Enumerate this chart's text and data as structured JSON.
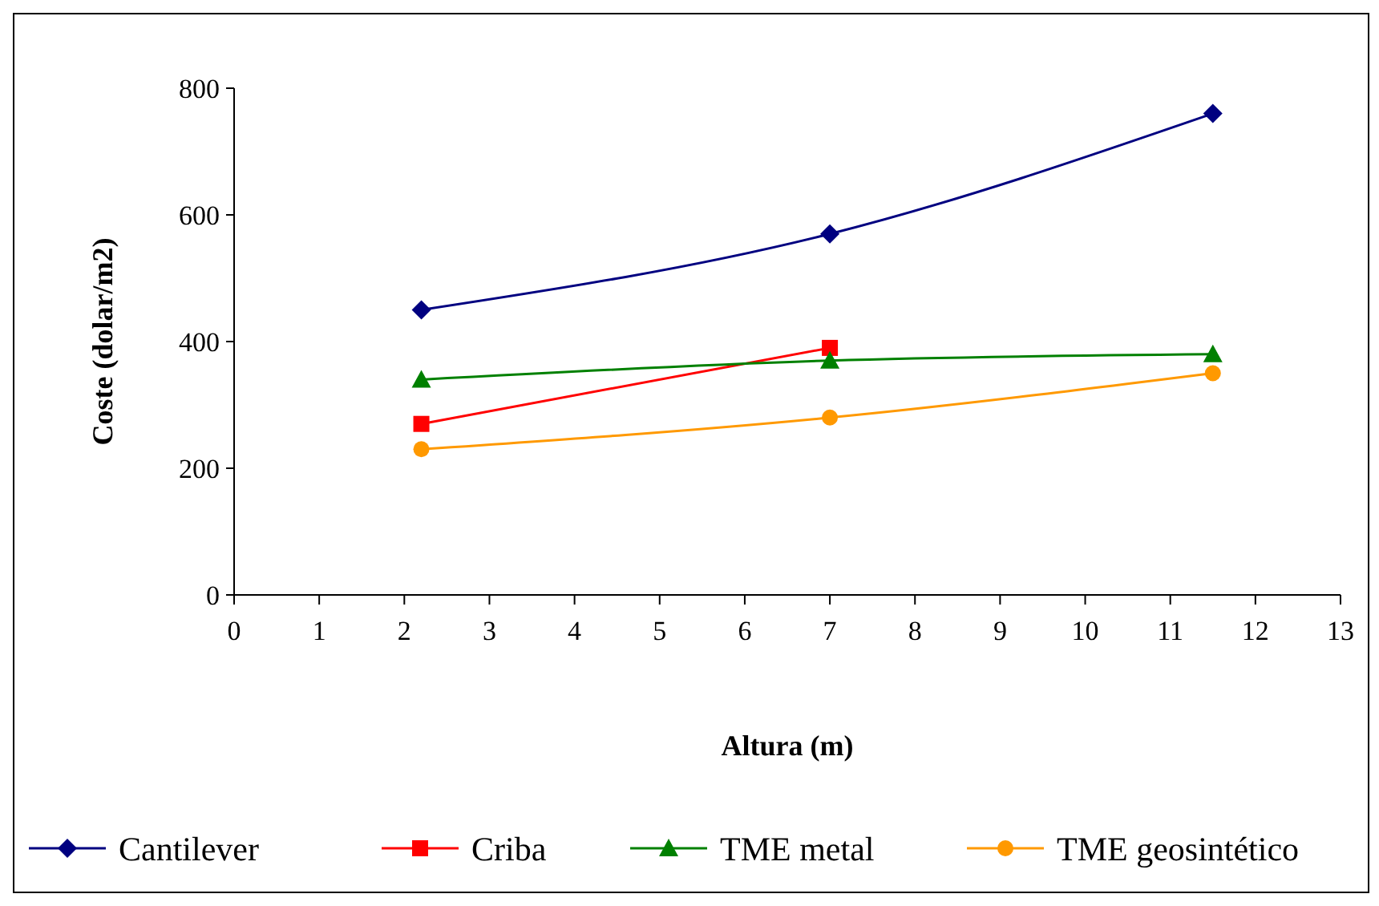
{
  "chart_data": {
    "type": "line",
    "xlabel": "Altura (m)",
    "ylabel": "Coste (dolar/m2)",
    "x": [
      2.2,
      7,
      11.5
    ],
    "series": [
      {
        "name": "Cantilever",
        "color": "#000080",
        "marker": "diamond",
        "values": [
          450,
          570,
          760
        ]
      },
      {
        "name": "Criba",
        "color": "#ff0000",
        "marker": "square",
        "x": [
          2.2,
          7
        ],
        "values": [
          270,
          390
        ]
      },
      {
        "name": "TME metal",
        "color": "#008000",
        "marker": "triangle",
        "values": [
          340,
          370,
          380
        ]
      },
      {
        "name": "TME geosintético",
        "color": "#ff9900",
        "marker": "circle",
        "values": [
          230,
          280,
          350
        ]
      }
    ],
    "xlim": [
      0,
      13
    ],
    "xticks": [
      0,
      1,
      2,
      3,
      4,
      5,
      6,
      7,
      8,
      9,
      10,
      11,
      12,
      13
    ],
    "ylim": [
      0,
      800
    ],
    "yticks": [
      0,
      200,
      400,
      600,
      800
    ],
    "grid": false,
    "legend": "bottom",
    "line_style": "solid"
  }
}
